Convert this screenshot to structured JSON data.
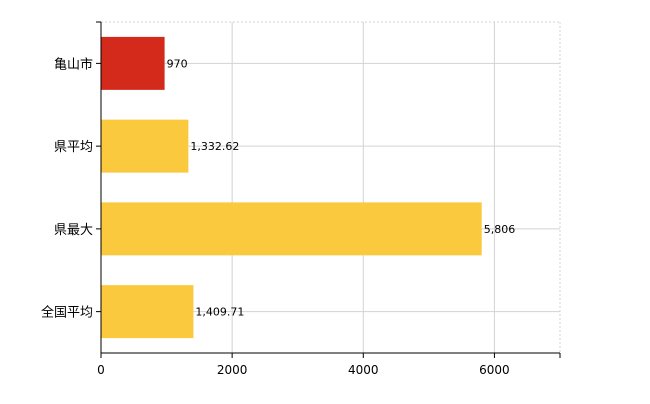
{
  "chart_data": {
    "type": "bar",
    "orientation": "horizontal",
    "categories": [
      "亀山市",
      "県平均",
      "県最大",
      "全国平均"
    ],
    "values": [
      970,
      1332.62,
      5806,
      1409.71
    ],
    "value_labels": [
      "970",
      "1,332.62",
      "5,806",
      "1,409.71"
    ],
    "bar_colors": [
      "#d42a1c",
      "#fbc93d",
      "#fbc93d",
      "#fbc93d"
    ],
    "xlim": [
      0,
      7000
    ],
    "x_ticks": [
      0,
      2000,
      4000,
      6000
    ],
    "x_tick_labels": [
      "0",
      "2000",
      "4000",
      "6000"
    ],
    "grid": true,
    "legend": "none",
    "title": "",
    "xlabel": "",
    "ylabel": ""
  }
}
